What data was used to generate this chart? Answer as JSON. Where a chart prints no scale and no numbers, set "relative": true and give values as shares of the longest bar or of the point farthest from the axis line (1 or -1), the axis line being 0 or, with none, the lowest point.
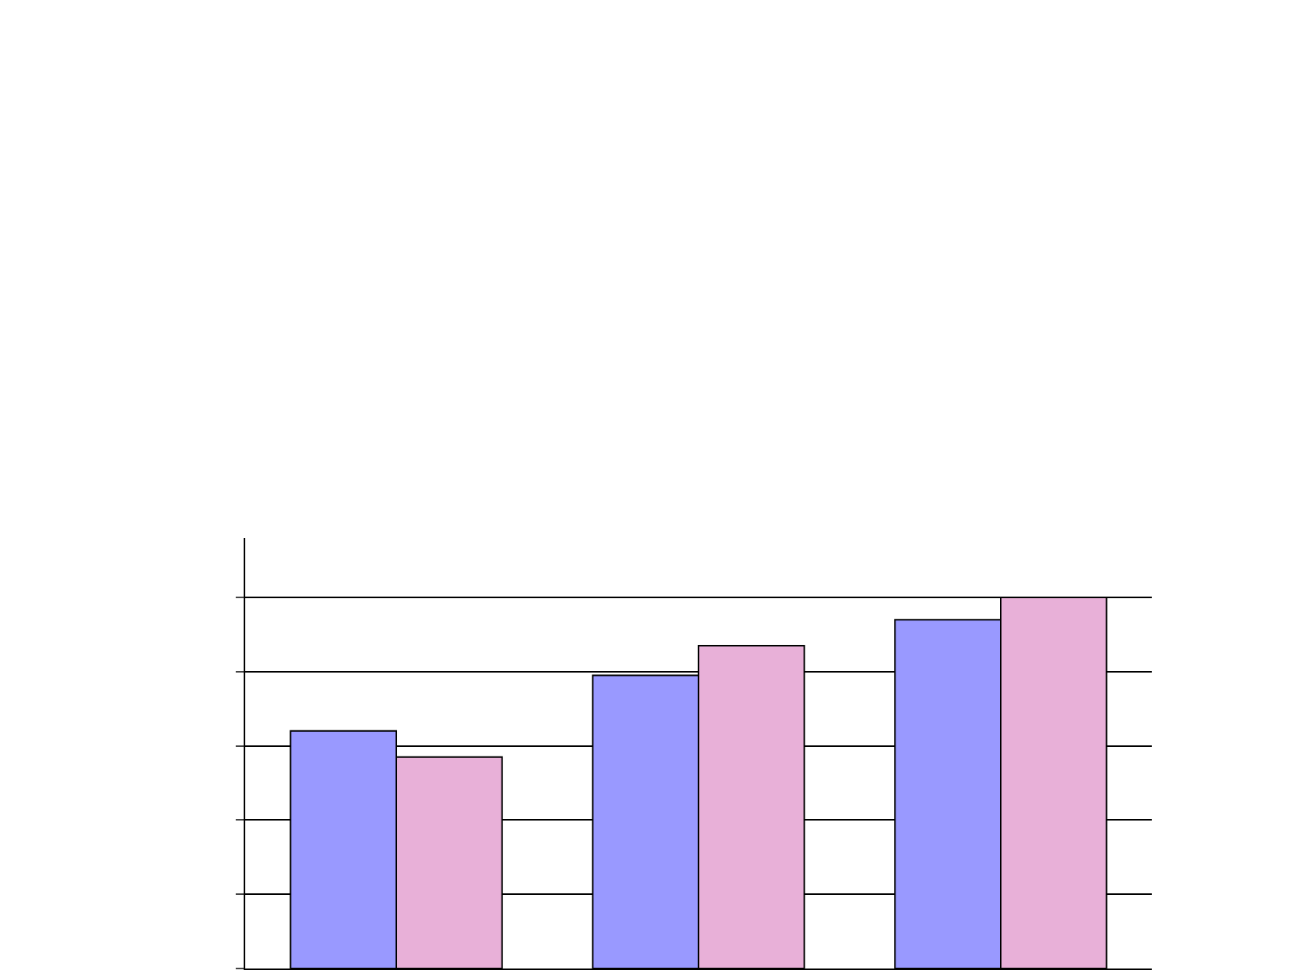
{
  "chart_data": {
    "type": "bar",
    "relative": true,
    "categories": [
      null,
      null,
      null
    ],
    "series": [
      {
        "color": "#9999ff",
        "values": [
          0.64,
          0.79,
          0.94
        ]
      },
      {
        "color": "#e8b0d8",
        "values": [
          0.57,
          0.87,
          1.0
        ]
      }
    ],
    "grid": "y",
    "legend": false
  }
}
